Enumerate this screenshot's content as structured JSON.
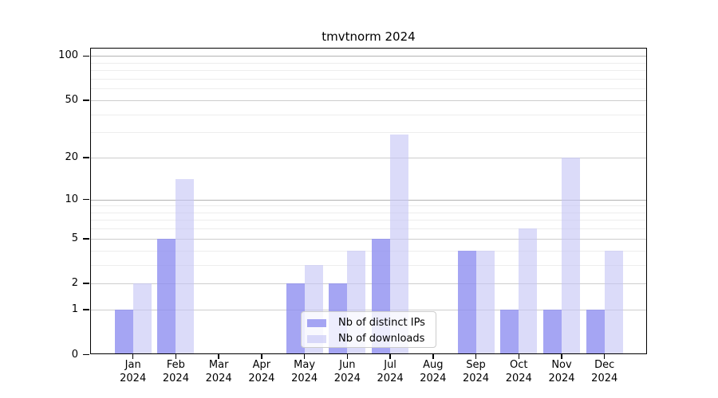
{
  "chart_data": {
    "type": "bar",
    "title": "tmvtnorm 2024",
    "categories": [
      "Jan 2024",
      "Feb 2024",
      "Mar 2024",
      "Apr 2024",
      "May 2024",
      "Jun 2024",
      "Jul 2024",
      "Aug 2024",
      "Sep 2024",
      "Oct 2024",
      "Nov 2024",
      "Dec 2024"
    ],
    "series": [
      {
        "name": "Nb of distinct IPs",
        "color": "#8c8cf0",
        "values": [
          1,
          5,
          0,
          0,
          2,
          2,
          5,
          0,
          4,
          1,
          1,
          1
        ]
      },
      {
        "name": "Nb of downloads",
        "color": "#c5c5f5",
        "values": [
          2,
          14,
          0,
          0,
          3,
          4,
          29,
          0,
          4,
          6,
          20,
          4
        ]
      }
    ],
    "xlabel": "",
    "ylabel": "",
    "yscale": "log1p",
    "ylim": [
      0,
      113
    ],
    "yticks": [
      0,
      1,
      2,
      5,
      10,
      20,
      50,
      100
    ],
    "minor_gridlines": [
      3,
      4,
      6,
      7,
      8,
      9,
      30,
      40,
      60,
      70,
      80,
      90
    ],
    "grid": true,
    "legend_position": "inside-bottom-center"
  },
  "colors": {
    "background": "#ffffff",
    "axis": "#000000",
    "grid_decade": "#b3b3b3",
    "grid_major": "#cdcdcd",
    "grid_minor": "#ededed",
    "legend_border": "#cccccc"
  }
}
